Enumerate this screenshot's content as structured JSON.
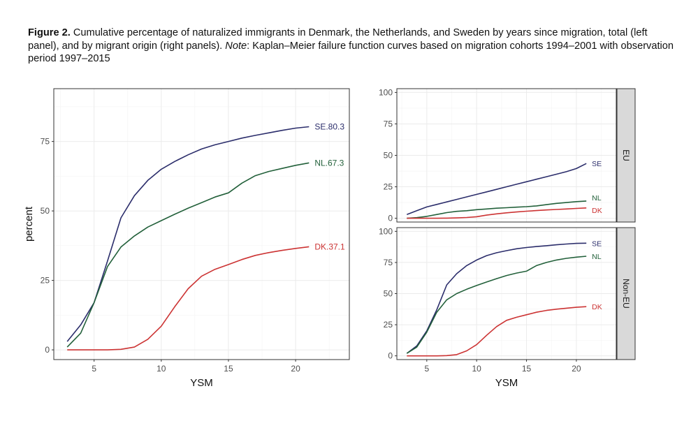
{
  "caption": {
    "figure_label": "Figure 2.",
    "text_before_note": " Cumulative percentage of naturalized immigrants in Denmark, the Netherlands, and Sweden by years since migration, total (left panel), and by migrant origin (right panels). ",
    "note_label": "Note",
    "text_after_note": ": Kaplan–Meier failure function curves based on migration cohorts 1994–2001 with observation period 1997–2015"
  },
  "colors": {
    "SE": "#2b2d6b",
    "NL": "#22603a",
    "DK": "#cc3333",
    "strip_fill": "#d9d9d9",
    "grid": "#ebebeb",
    "panel_border": "#333333"
  },
  "chart_data": [
    {
      "id": "total",
      "type": "line",
      "title": "",
      "xlabel": "YSM",
      "ylabel": "percent",
      "xlim": [
        2,
        24
      ],
      "ylim": [
        -3.5,
        94
      ],
      "xticks": [
        5,
        10,
        15,
        20
      ],
      "yticks": [
        0,
        25,
        50,
        75
      ],
      "grid": true,
      "series": [
        {
          "name": "SE",
          "label": "SE.80.3",
          "x": [
            3,
            4,
            5,
            6,
            7,
            8,
            9,
            10,
            11,
            12,
            13,
            14,
            15,
            16,
            17,
            18,
            19,
            20,
            21
          ],
          "y": [
            3,
            9,
            17,
            32,
            47.5,
            55.5,
            61,
            65,
            67.8,
            70.2,
            72.3,
            73.8,
            75,
            76.2,
            77.2,
            78.1,
            79,
            79.8,
            80.3
          ]
        },
        {
          "name": "NL",
          "label": "NL.67.3",
          "x": [
            3,
            4,
            5,
            6,
            7,
            8,
            9,
            10,
            11,
            12,
            13,
            14,
            15,
            16,
            17,
            18,
            19,
            20,
            21
          ],
          "y": [
            1,
            6,
            17,
            30,
            37,
            41,
            44.2,
            46.5,
            48.8,
            51,
            53,
            55,
            56.5,
            60,
            62.7,
            64.2,
            65.3,
            66.4,
            67.3
          ]
        },
        {
          "name": "DK",
          "label": "DK.37.1",
          "x": [
            3,
            4,
            5,
            6,
            7,
            8,
            9,
            10,
            11,
            12,
            13,
            14,
            15,
            16,
            17,
            18,
            19,
            20,
            21
          ],
          "y": [
            0,
            0,
            0,
            0,
            0.2,
            1,
            3.8,
            8.5,
            15.5,
            22,
            26.5,
            29,
            30.7,
            32.5,
            34,
            35,
            35.8,
            36.5,
            37.1
          ]
        }
      ]
    },
    {
      "id": "eu",
      "type": "line",
      "strip_label": "EU",
      "xlabel": "",
      "ylabel": "",
      "xlim": [
        2,
        24
      ],
      "ylim": [
        -3,
        103
      ],
      "xticks": [
        5,
        10,
        15,
        20
      ],
      "yticks": [
        0,
        25,
        50,
        75,
        100
      ],
      "grid": true,
      "series": [
        {
          "name": "SE",
          "label": "SE",
          "x": [
            3,
            4,
            5,
            6,
            7,
            8,
            9,
            10,
            11,
            12,
            13,
            14,
            15,
            16,
            17,
            18,
            19,
            20,
            21
          ],
          "y": [
            3,
            6,
            9,
            11,
            13,
            15,
            17,
            19,
            21,
            23,
            25,
            27,
            29,
            31,
            33,
            35,
            37,
            39.5,
            43.5
          ]
        },
        {
          "name": "NL",
          "label": "NL",
          "x": [
            3,
            4,
            5,
            6,
            7,
            8,
            9,
            10,
            11,
            12,
            13,
            14,
            15,
            16,
            17,
            18,
            19,
            20,
            21
          ],
          "y": [
            0,
            0.5,
            1.5,
            3,
            4.5,
            5.5,
            6,
            6.8,
            7.4,
            8,
            8.4,
            8.8,
            9.2,
            9.8,
            10.8,
            11.8,
            12.5,
            13.2,
            13.7
          ]
        },
        {
          "name": "DK",
          "label": "DK",
          "x": [
            3,
            4,
            5,
            6,
            7,
            8,
            9,
            10,
            11,
            12,
            13,
            14,
            15,
            16,
            17,
            18,
            19,
            20,
            21
          ],
          "y": [
            0,
            0,
            0,
            0,
            0.1,
            0.3,
            0.6,
            1.2,
            2.5,
            3.5,
            4.3,
            5,
            5.6,
            6.1,
            6.6,
            7,
            7.4,
            7.8,
            8.2
          ]
        }
      ]
    },
    {
      "id": "non-eu",
      "type": "line",
      "strip_label": "Non-EU",
      "xlabel": "YSM",
      "ylabel": "",
      "xlim": [
        2,
        24
      ],
      "ylim": [
        -3,
        103
      ],
      "xticks": [
        5,
        10,
        15,
        20
      ],
      "yticks": [
        0,
        25,
        50,
        75,
        100
      ],
      "grid": true,
      "series": [
        {
          "name": "SE",
          "label": "SE",
          "x": [
            3,
            4,
            5,
            6,
            7,
            8,
            9,
            10,
            11,
            12,
            13,
            14,
            15,
            16,
            17,
            18,
            19,
            20,
            21
          ],
          "y": [
            2,
            8,
            20,
            37,
            57,
            66,
            72.5,
            77,
            80.5,
            82.8,
            84.5,
            86,
            87,
            87.8,
            88.5,
            89.2,
            89.8,
            90.3,
            90.5
          ]
        },
        {
          "name": "NL",
          "label": "NL",
          "x": [
            3,
            4,
            5,
            6,
            7,
            8,
            9,
            10,
            11,
            12,
            13,
            14,
            15,
            16,
            17,
            18,
            19,
            20,
            21
          ],
          "y": [
            2,
            7,
            19,
            35,
            45,
            50,
            53.5,
            56.5,
            59.3,
            62,
            64.5,
            66.5,
            68,
            72.5,
            75,
            77,
            78.3,
            79.3,
            80
          ]
        },
        {
          "name": "DK",
          "label": "DK",
          "x": [
            3,
            4,
            5,
            6,
            7,
            8,
            9,
            10,
            11,
            12,
            13,
            14,
            15,
            16,
            17,
            18,
            19,
            20,
            21
          ],
          "y": [
            0,
            0,
            0,
            0,
            0.2,
            1,
            4,
            9,
            16.5,
            23.5,
            28.5,
            31,
            33,
            35,
            36.5,
            37.5,
            38.3,
            39,
            39.5
          ]
        }
      ]
    }
  ]
}
